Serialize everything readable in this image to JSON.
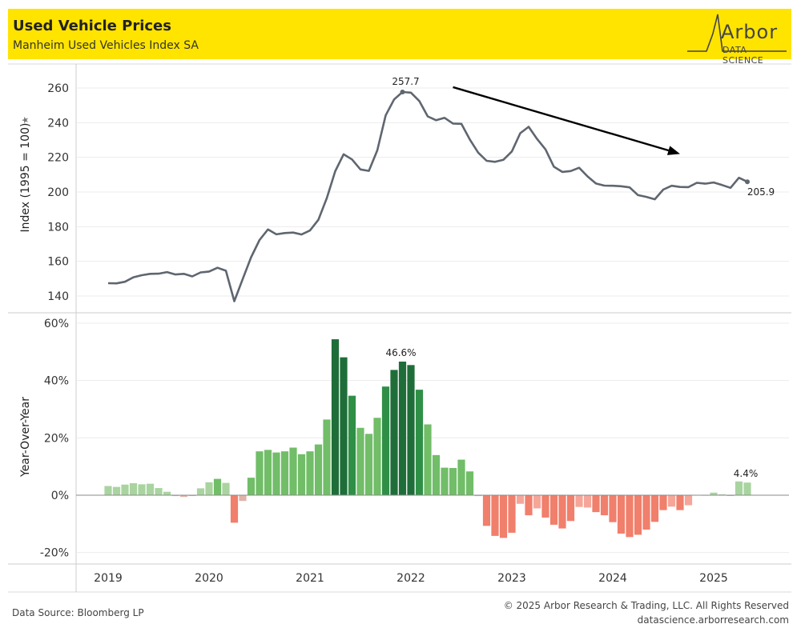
{
  "header": {
    "title": "Used Vehicle Prices",
    "subtitle": "Manheim Used Vehicles Index SA",
    "logo_word": "Arbor",
    "logo_sub": "DATA SCIENCE"
  },
  "footer": {
    "source": "Data Source: Bloomberg LP",
    "copyright": "© 2025 Arbor Research & Trading, LLC. All Rights Reserved",
    "website": "datascience.arborresearch.com"
  },
  "colors": {
    "header_bg": "#ffe400",
    "index_line": "#5f6670",
    "arrow": "#000000",
    "pos_strong": "#1f6e3a",
    "pos_mid": "#2f8f47",
    "pos_light": "#71bd68",
    "pos_faint": "#a9d4a0",
    "neg_strong": "#f07f6c",
    "neg_mid": "#f5a699",
    "neg_faint": "#e0b3a8"
  },
  "chart_data": [
    {
      "type": "line",
      "ylabel": "Index (1995 = 100)",
      "yticks": [
        140,
        160,
        180,
        200,
        220,
        240,
        260
      ],
      "ylim": [
        131,
        272
      ],
      "x_start": "2019-01",
      "x": [
        "2019-01",
        "2019-02",
        "2019-03",
        "2019-04",
        "2019-05",
        "2019-06",
        "2019-07",
        "2019-08",
        "2019-09",
        "2019-10",
        "2019-11",
        "2019-12",
        "2020-01",
        "2020-02",
        "2020-03",
        "2020-04",
        "2020-05",
        "2020-06",
        "2020-07",
        "2020-08",
        "2020-09",
        "2020-10",
        "2020-11",
        "2020-12",
        "2021-01",
        "2021-02",
        "2021-03",
        "2021-04",
        "2021-05",
        "2021-06",
        "2021-07",
        "2021-08",
        "2021-09",
        "2021-10",
        "2021-11",
        "2021-12",
        "2022-01",
        "2022-02",
        "2022-03",
        "2022-04",
        "2022-05",
        "2022-06",
        "2022-07",
        "2022-08",
        "2022-09",
        "2022-10",
        "2022-11",
        "2022-12",
        "2023-01",
        "2023-02",
        "2023-03",
        "2023-04",
        "2023-05",
        "2023-06",
        "2023-07",
        "2023-08",
        "2023-09",
        "2023-10",
        "2023-11",
        "2023-12",
        "2024-01",
        "2024-02",
        "2024-03",
        "2024-04",
        "2024-05",
        "2024-06",
        "2024-07",
        "2024-08",
        "2024-09",
        "2024-10",
        "2024-11",
        "2024-12",
        "2025-01",
        "2025-02",
        "2025-03",
        "2025-04",
        "2025-05"
      ],
      "values": [
        147.4,
        147.3,
        148.2,
        150.8,
        152.0,
        152.8,
        152.9,
        153.8,
        152.4,
        152.8,
        151.3,
        153.6,
        154.1,
        156.3,
        154.6,
        137.0,
        149.8,
        162.4,
        172.3,
        178.4,
        175.6,
        176.3,
        176.6,
        175.5,
        177.8,
        184.0,
        196.5,
        212.0,
        221.8,
        218.8,
        213.0,
        212.2,
        224.0,
        244.2,
        253.4,
        257.7,
        257.3,
        252.5,
        243.6,
        241.4,
        242.8,
        239.5,
        239.3,
        230.3,
        222.7,
        218.0,
        217.4,
        218.6,
        223.4,
        233.9,
        237.6,
        230.6,
        224.6,
        214.6,
        211.6,
        212.1,
        214.0,
        209.0,
        204.9,
        203.7,
        203.6,
        203.3,
        202.7,
        198.2,
        197.2,
        195.8,
        201.4,
        203.6,
        202.9,
        202.8,
        205.3,
        204.8,
        205.5,
        204.0,
        202.4,
        208.2,
        205.9
      ],
      "annotations": [
        {
          "x": "2021-12",
          "label": "257.7"
        },
        {
          "x": "2025-05",
          "label": "205.9"
        }
      ],
      "trend_arrow": {
        "from": {
          "x": "2022-06",
          "y": 260.5
        },
        "to": {
          "x": "2024-09",
          "y": 222.0
        }
      }
    },
    {
      "type": "bar",
      "ylabel": "Year-Over-Year",
      "yticks": [
        -20,
        0,
        20,
        40,
        60
      ],
      "ytick_labels": [
        "-20%",
        "0%",
        "20%",
        "40%",
        "60%"
      ],
      "ylim": [
        -24,
        62
      ],
      "x": [
        "2019-01",
        "2019-02",
        "2019-03",
        "2019-04",
        "2019-05",
        "2019-06",
        "2019-07",
        "2019-08",
        "2019-09",
        "2019-10",
        "2019-11",
        "2019-12",
        "2020-01",
        "2020-02",
        "2020-03",
        "2020-04",
        "2020-05",
        "2020-06",
        "2020-07",
        "2020-08",
        "2020-09",
        "2020-10",
        "2020-11",
        "2020-12",
        "2021-01",
        "2021-02",
        "2021-03",
        "2021-04",
        "2021-05",
        "2021-06",
        "2021-07",
        "2021-08",
        "2021-09",
        "2021-10",
        "2021-11",
        "2021-12",
        "2022-01",
        "2022-02",
        "2022-03",
        "2022-04",
        "2022-05",
        "2022-06",
        "2022-07",
        "2022-08",
        "2022-09",
        "2022-10",
        "2022-11",
        "2022-12",
        "2023-01",
        "2023-02",
        "2023-03",
        "2023-04",
        "2023-05",
        "2023-06",
        "2023-07",
        "2023-08",
        "2023-09",
        "2023-10",
        "2023-11",
        "2023-12",
        "2024-01",
        "2024-02",
        "2024-03",
        "2024-04",
        "2024-05",
        "2024-06",
        "2024-07",
        "2024-08",
        "2024-09",
        "2024-10",
        "2024-11",
        "2024-12",
        "2025-01",
        "2025-02",
        "2025-03",
        "2025-04",
        "2025-05"
      ],
      "values": [
        3.2,
        2.9,
        3.7,
        4.2,
        3.8,
        4.0,
        2.5,
        1.2,
        -0.3,
        -0.6,
        -0.2,
        2.4,
        4.5,
        5.7,
        4.3,
        -9.6,
        -2.0,
        6.1,
        15.3,
        15.8,
        14.9,
        15.3,
        16.6,
        14.3,
        15.3,
        17.7,
        26.4,
        54.4,
        48.1,
        34.7,
        23.5,
        21.4,
        27.0,
        37.9,
        43.7,
        46.6,
        45.4,
        36.8,
        24.7,
        14.0,
        9.6,
        9.5,
        12.4,
        8.3,
        -0.3,
        -10.7,
        -14.2,
        -14.9,
        -13.1,
        -3.0,
        -7.0,
        -4.6,
        -7.8,
        -10.3,
        -11.6,
        -9.0,
        -4.1,
        -4.3,
        -5.9,
        -7.0,
        -9.4,
        -13.4,
        -14.6,
        -13.8,
        -12.0,
        -9.3,
        -5.2,
        -4.0,
        -5.2,
        -3.5,
        0.0,
        0.1,
        0.9,
        0.3,
        -0.1,
        4.8,
        4.4
      ],
      "annotations": [
        {
          "x": "2021-12",
          "label": "46.6%"
        },
        {
          "x": "2025-05",
          "label": "4.4%"
        }
      ]
    }
  ],
  "x_axis": {
    "ticks": [
      "2019",
      "2020",
      "2021",
      "2022",
      "2023",
      "2024",
      "2025"
    ]
  }
}
